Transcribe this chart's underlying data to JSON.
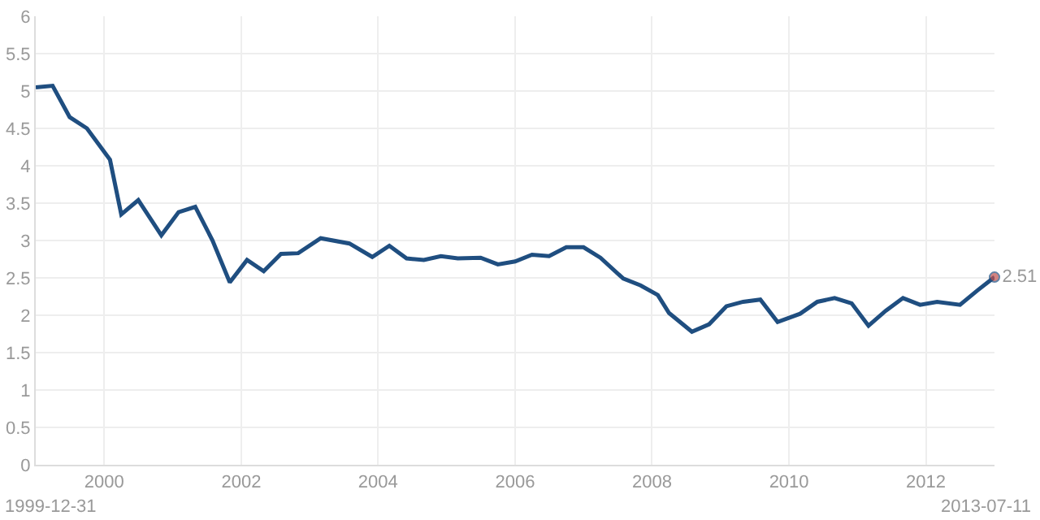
{
  "chart_data": {
    "type": "line",
    "x": [
      "1999-01",
      "1999-04",
      "1999-07",
      "1999-10",
      "2000-02",
      "2000-04",
      "2000-07",
      "2000-11",
      "2001-02",
      "2001-05",
      "2001-08",
      "2001-11",
      "2002-02",
      "2002-05",
      "2002-08",
      "2002-11",
      "2003-03",
      "2003-08",
      "2003-12",
      "2004-03",
      "2004-06",
      "2004-09",
      "2004-12",
      "2005-03",
      "2005-07",
      "2005-10",
      "2006-01",
      "2006-04",
      "2006-07",
      "2006-10",
      "2007-01",
      "2007-04",
      "2007-08",
      "2007-11",
      "2008-02",
      "2008-04",
      "2008-08",
      "2008-11",
      "2009-02",
      "2009-05",
      "2009-08",
      "2009-11",
      "2010-03",
      "2010-06",
      "2010-09",
      "2010-12",
      "2011-03",
      "2011-06",
      "2011-09",
      "2011-12",
      "2012-03",
      "2012-07",
      "2012-10",
      "2013-01"
    ],
    "series": [
      {
        "color": "#1f4e80",
        "values": [
          5.05,
          5.07,
          4.65,
          4.5,
          4.08,
          3.35,
          3.54,
          3.07,
          3.38,
          3.45,
          3.0,
          2.44,
          2.74,
          2.59,
          2.82,
          2.83,
          3.03,
          2.96,
          2.78,
          2.93,
          2.76,
          2.74,
          2.79,
          2.76,
          2.77,
          2.68,
          2.72,
          2.81,
          2.79,
          2.91,
          2.91,
          2.77,
          2.49,
          2.4,
          2.27,
          2.03,
          1.78,
          1.88,
          2.12,
          2.18,
          2.21,
          1.91,
          2.02,
          2.18,
          2.23,
          2.16,
          1.86,
          2.06,
          2.23,
          2.14,
          2.18,
          2.14,
          2.33,
          2.51
        ],
        "value_labels": [
          null,
          null,
          null,
          null,
          null,
          null,
          null,
          null,
          null,
          null,
          null,
          null,
          null,
          null,
          null,
          null,
          null,
          null,
          null,
          null,
          null,
          null,
          null,
          null,
          null,
          null,
          null,
          null,
          null,
          null,
          null,
          null,
          null,
          null,
          null,
          null,
          null,
          null,
          null,
          null,
          null,
          null,
          null,
          null,
          null,
          null,
          null,
          null,
          null,
          null,
          null,
          null,
          null,
          "2.51"
        ]
      }
    ],
    "xlim": [
      "1999-01-01",
      "2013-01-01"
    ],
    "xticks": [
      {
        "value": "2000-01-01",
        "label": "2000"
      },
      {
        "value": "2002-01-01",
        "label": "2002"
      },
      {
        "value": "2004-01-01",
        "label": "2004"
      },
      {
        "value": "2006-01-01",
        "label": "2006"
      },
      {
        "value": "2008-01-01",
        "label": "2008"
      },
      {
        "value": "2010-01-01",
        "label": "2010"
      },
      {
        "value": "2012-01-01",
        "label": "2012"
      }
    ],
    "ylim": [
      0,
      6
    ],
    "yticks": [
      0,
      0.5,
      1,
      1.5,
      2,
      2.5,
      3,
      3.5,
      4,
      4.5,
      5,
      5.5,
      6
    ],
    "grid": true,
    "line_style": "solid",
    "marker": "none",
    "annotations": [
      "1999-12-31",
      "2013-07-11"
    ]
  }
}
